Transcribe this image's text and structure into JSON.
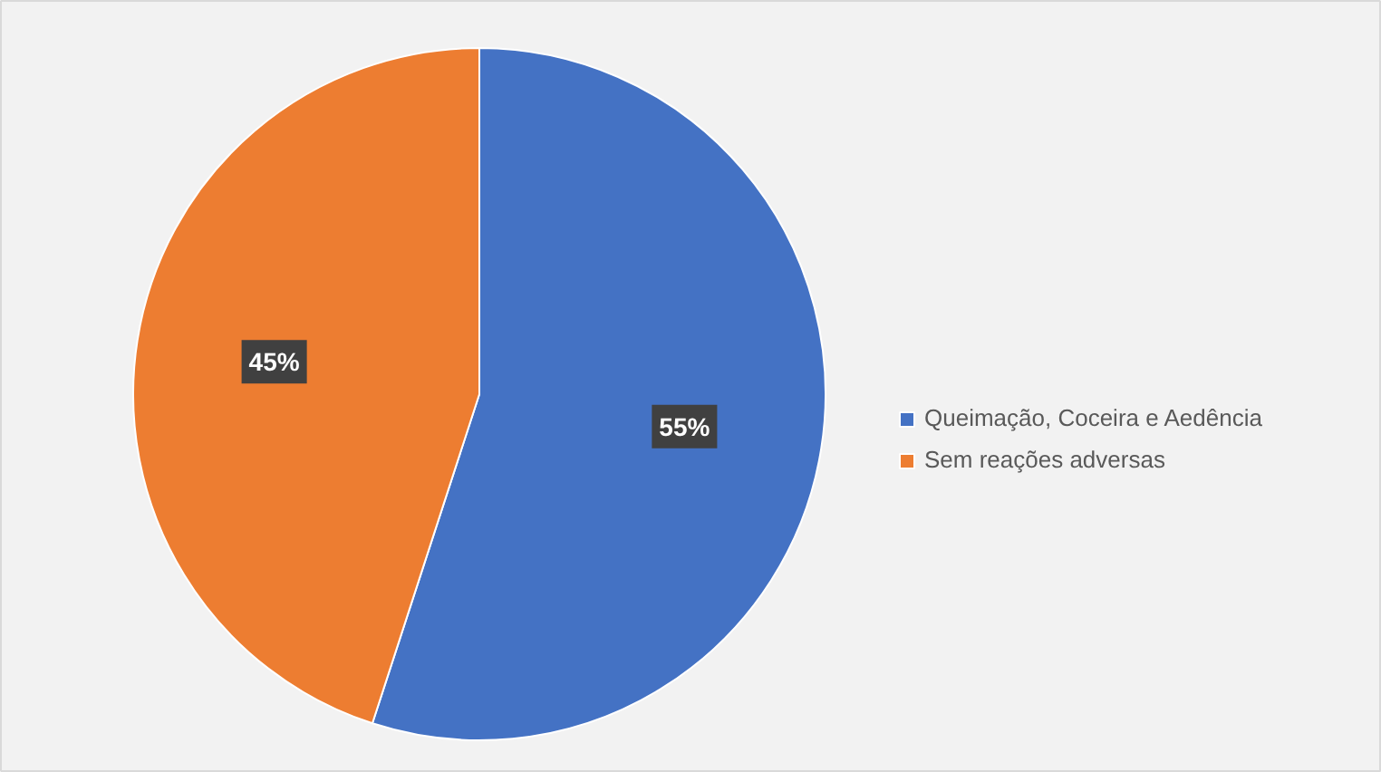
{
  "chart_data": {
    "type": "pie",
    "categories": [
      "Queimação, Coceira e Aedência",
      "Sem reações adversas"
    ],
    "values": [
      55,
      45
    ],
    "colors": [
      "#4472c4",
      "#ed7d31"
    ],
    "value_labels": [
      "55%",
      "45%"
    ],
    "legend": "right"
  }
}
